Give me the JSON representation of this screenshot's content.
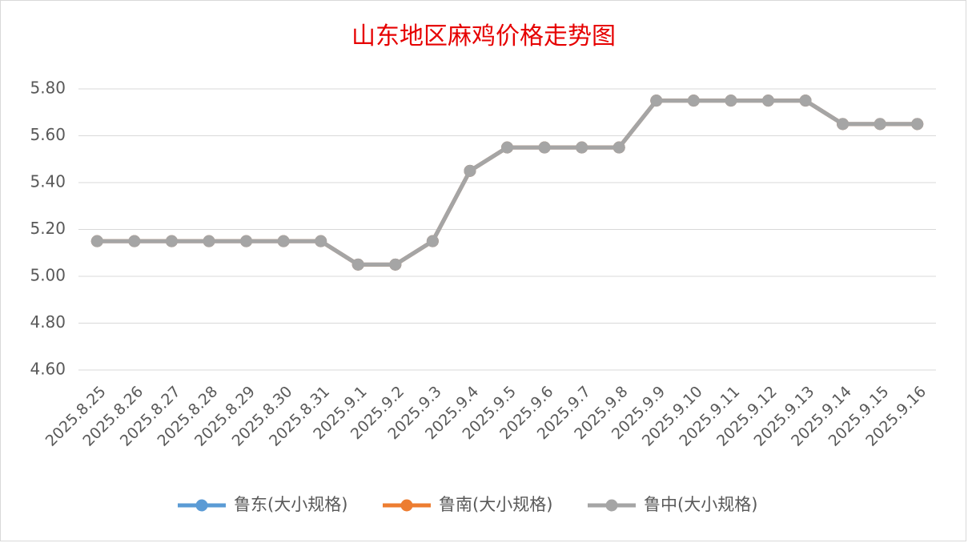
{
  "chart_data": {
    "type": "line",
    "title": "山东地区麻鸡价格走势图",
    "categories": [
      "2025.8.25",
      "2025.8.26",
      "2025.8.27",
      "2025.8.28",
      "2025.8.29",
      "2025.8.30",
      "2025.8.31",
      "2025.9.1",
      "2025.9.2",
      "2025.9.3",
      "2025.9.4",
      "2025.9.5",
      "2025.9.6",
      "2025.9.7",
      "2025.9.8",
      "2025.9.9",
      "2025.9.10",
      "2025.9.11",
      "2025.9.12",
      "2025.9.13",
      "2025.9.14",
      "2025.9.15",
      "2025.9.16"
    ],
    "series": [
      {
        "name": "鲁东(大小规格)",
        "color": "#5b9bd5",
        "values": [
          5.15,
          5.15,
          5.15,
          5.15,
          5.15,
          5.15,
          5.15,
          5.05,
          5.05,
          5.15,
          5.45,
          5.55,
          5.55,
          5.55,
          5.55,
          5.75,
          5.75,
          5.75,
          5.75,
          5.75,
          5.65,
          5.65,
          5.65
        ]
      },
      {
        "name": "鲁南(大小规格)",
        "color": "#ed7d31",
        "values": [
          5.15,
          5.15,
          5.15,
          5.15,
          5.15,
          5.15,
          5.15,
          5.05,
          5.05,
          5.15,
          5.45,
          5.55,
          5.55,
          5.55,
          5.55,
          5.75,
          5.75,
          5.75,
          5.75,
          5.75,
          5.65,
          5.65,
          5.65
        ]
      },
      {
        "name": "鲁中(大小规格)",
        "color": "#a5a5a5",
        "values": [
          5.15,
          5.15,
          5.15,
          5.15,
          5.15,
          5.15,
          5.15,
          5.05,
          5.05,
          5.15,
          5.45,
          5.55,
          5.55,
          5.55,
          5.55,
          5.75,
          5.75,
          5.75,
          5.75,
          5.75,
          5.65,
          5.65,
          5.65
        ]
      }
    ],
    "ylim": [
      4.6,
      5.8
    ],
    "yticks": [
      {
        "value": 4.6,
        "label": "4.60"
      },
      {
        "value": 4.8,
        "label": "4.80"
      },
      {
        "value": 5.0,
        "label": "5.00"
      },
      {
        "value": 5.2,
        "label": "5.20"
      },
      {
        "value": 5.4,
        "label": "5.40"
      },
      {
        "value": 5.6,
        "label": "5.60"
      },
      {
        "value": 5.8,
        "label": "5.80"
      }
    ],
    "grid": true,
    "legend": "bottom",
    "title_color": "#e60000"
  }
}
